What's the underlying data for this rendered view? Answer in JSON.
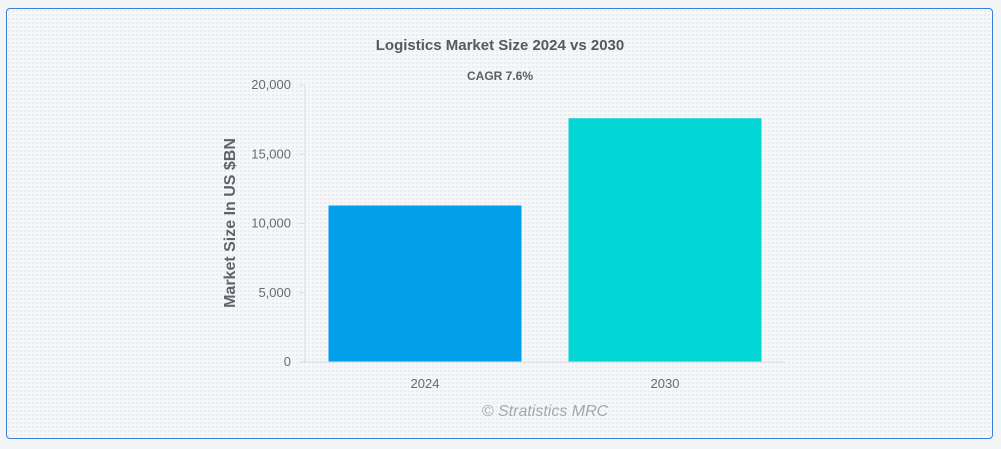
{
  "chart_data": {
    "type": "bar",
    "title": "Logistics Market Size 2024 vs 2030",
    "subtitle": "CAGR 7.6%",
    "xlabel": "",
    "ylabel": "Market Size In US $BN",
    "categories": [
      "2024",
      "2030"
    ],
    "values": [
      11300,
      17600
    ],
    "ylim": [
      0,
      20000
    ],
    "yticks": [
      0,
      5000,
      10000,
      15000,
      20000
    ],
    "ytick_labels": [
      "0",
      "5,000",
      "10,000",
      "15,000",
      "20,000"
    ],
    "colors": [
      "#039fea",
      "#03d4d4"
    ],
    "grid": false,
    "legend": "none"
  },
  "watermark": "© Stratistics MRC"
}
